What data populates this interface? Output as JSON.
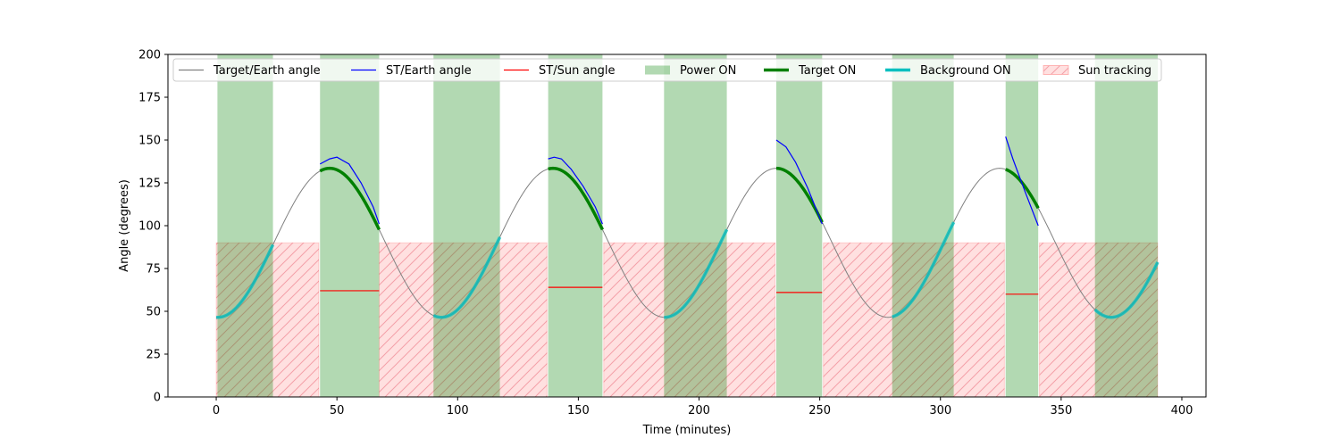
{
  "chart_data": {
    "type": "line",
    "xlabel": "Time (minutes)",
    "ylabel": "Angle (degrees)",
    "xlim": [
      -20,
      410
    ],
    "ylim": [
      0,
      200
    ],
    "xticks": [
      0,
      50,
      100,
      150,
      200,
      250,
      300,
      350,
      400
    ],
    "yticks": [
      0,
      25,
      50,
      75,
      100,
      125,
      150,
      175,
      200
    ],
    "grid": false,
    "legend_position": "top",
    "legend": [
      {
        "label": "Target/Earth angle",
        "kind": "line",
        "color": "#808080"
      },
      {
        "label": "ST/Earth angle",
        "kind": "line",
        "color": "#0000ff"
      },
      {
        "label": "ST/Sun angle",
        "kind": "line",
        "color": "#ff0000"
      },
      {
        "label": "Power ON",
        "kind": "patch",
        "color": "#008000"
      },
      {
        "label": "Target ON",
        "kind": "thickline",
        "color": "#008000"
      },
      {
        "label": "Background ON",
        "kind": "thickline",
        "color": "#00bfbf"
      },
      {
        "label": "Sun tracking",
        "kind": "hatch",
        "color": "#ff0000"
      }
    ],
    "target_earth_curve": {
      "period": 92.5,
      "mean": 90,
      "amplitude": 43.5,
      "peak_at": 47,
      "range": [
        0,
        390
      ]
    },
    "power_on_intervals": [
      [
        0.5,
        23.5
      ],
      [
        43,
        67.5
      ],
      [
        90,
        117.5
      ],
      [
        137.5,
        160
      ],
      [
        185.5,
        211.5
      ],
      [
        232,
        251
      ],
      [
        280,
        305.5
      ],
      [
        327,
        340.5
      ],
      [
        364,
        390
      ]
    ],
    "sun_tracking_intervals": [
      [
        0,
        42.5
      ],
      [
        67.5,
        137
      ],
      [
        160.5,
        231.5
      ],
      [
        251.5,
        326.5
      ],
      [
        341,
        390
      ]
    ],
    "sun_tracking_ceiling": 90,
    "target_on_intervals": [
      [
        43,
        67.5
      ],
      [
        137.5,
        160
      ],
      [
        232,
        251
      ],
      [
        327,
        340.5
      ]
    ],
    "background_on_intervals": [
      [
        0,
        23.5
      ],
      [
        90,
        117.5
      ],
      [
        185.5,
        211.5
      ],
      [
        280,
        305.5
      ],
      [
        364,
        390
      ]
    ],
    "st_earth_segments": [
      {
        "x": [
          43,
          47,
          50,
          55,
          60,
          65,
          67.5
        ],
        "y": [
          136,
          139,
          140,
          136,
          125,
          111,
          101
        ]
      },
      {
        "x": [
          137.5,
          140,
          143,
          147,
          152,
          157,
          160
        ],
        "y": [
          139,
          140,
          139,
          133,
          123,
          111,
          101
        ]
      },
      {
        "x": [
          232,
          236,
          240,
          245,
          251
        ],
        "y": [
          150,
          146,
          137,
          122,
          101
        ]
      },
      {
        "x": [
          327,
          330,
          335,
          340.5
        ],
        "y": [
          152,
          139,
          120,
          100
        ]
      }
    ],
    "st_sun_segments": [
      {
        "x": [
          43,
          67.5
        ],
        "y": [
          62,
          62
        ]
      },
      {
        "x": [
          137.5,
          160
        ],
        "y": [
          64,
          64
        ]
      },
      {
        "x": [
          232,
          251
        ],
        "y": [
          61,
          61
        ]
      },
      {
        "x": [
          327,
          340.5
        ],
        "y": [
          60,
          60
        ]
      }
    ]
  }
}
